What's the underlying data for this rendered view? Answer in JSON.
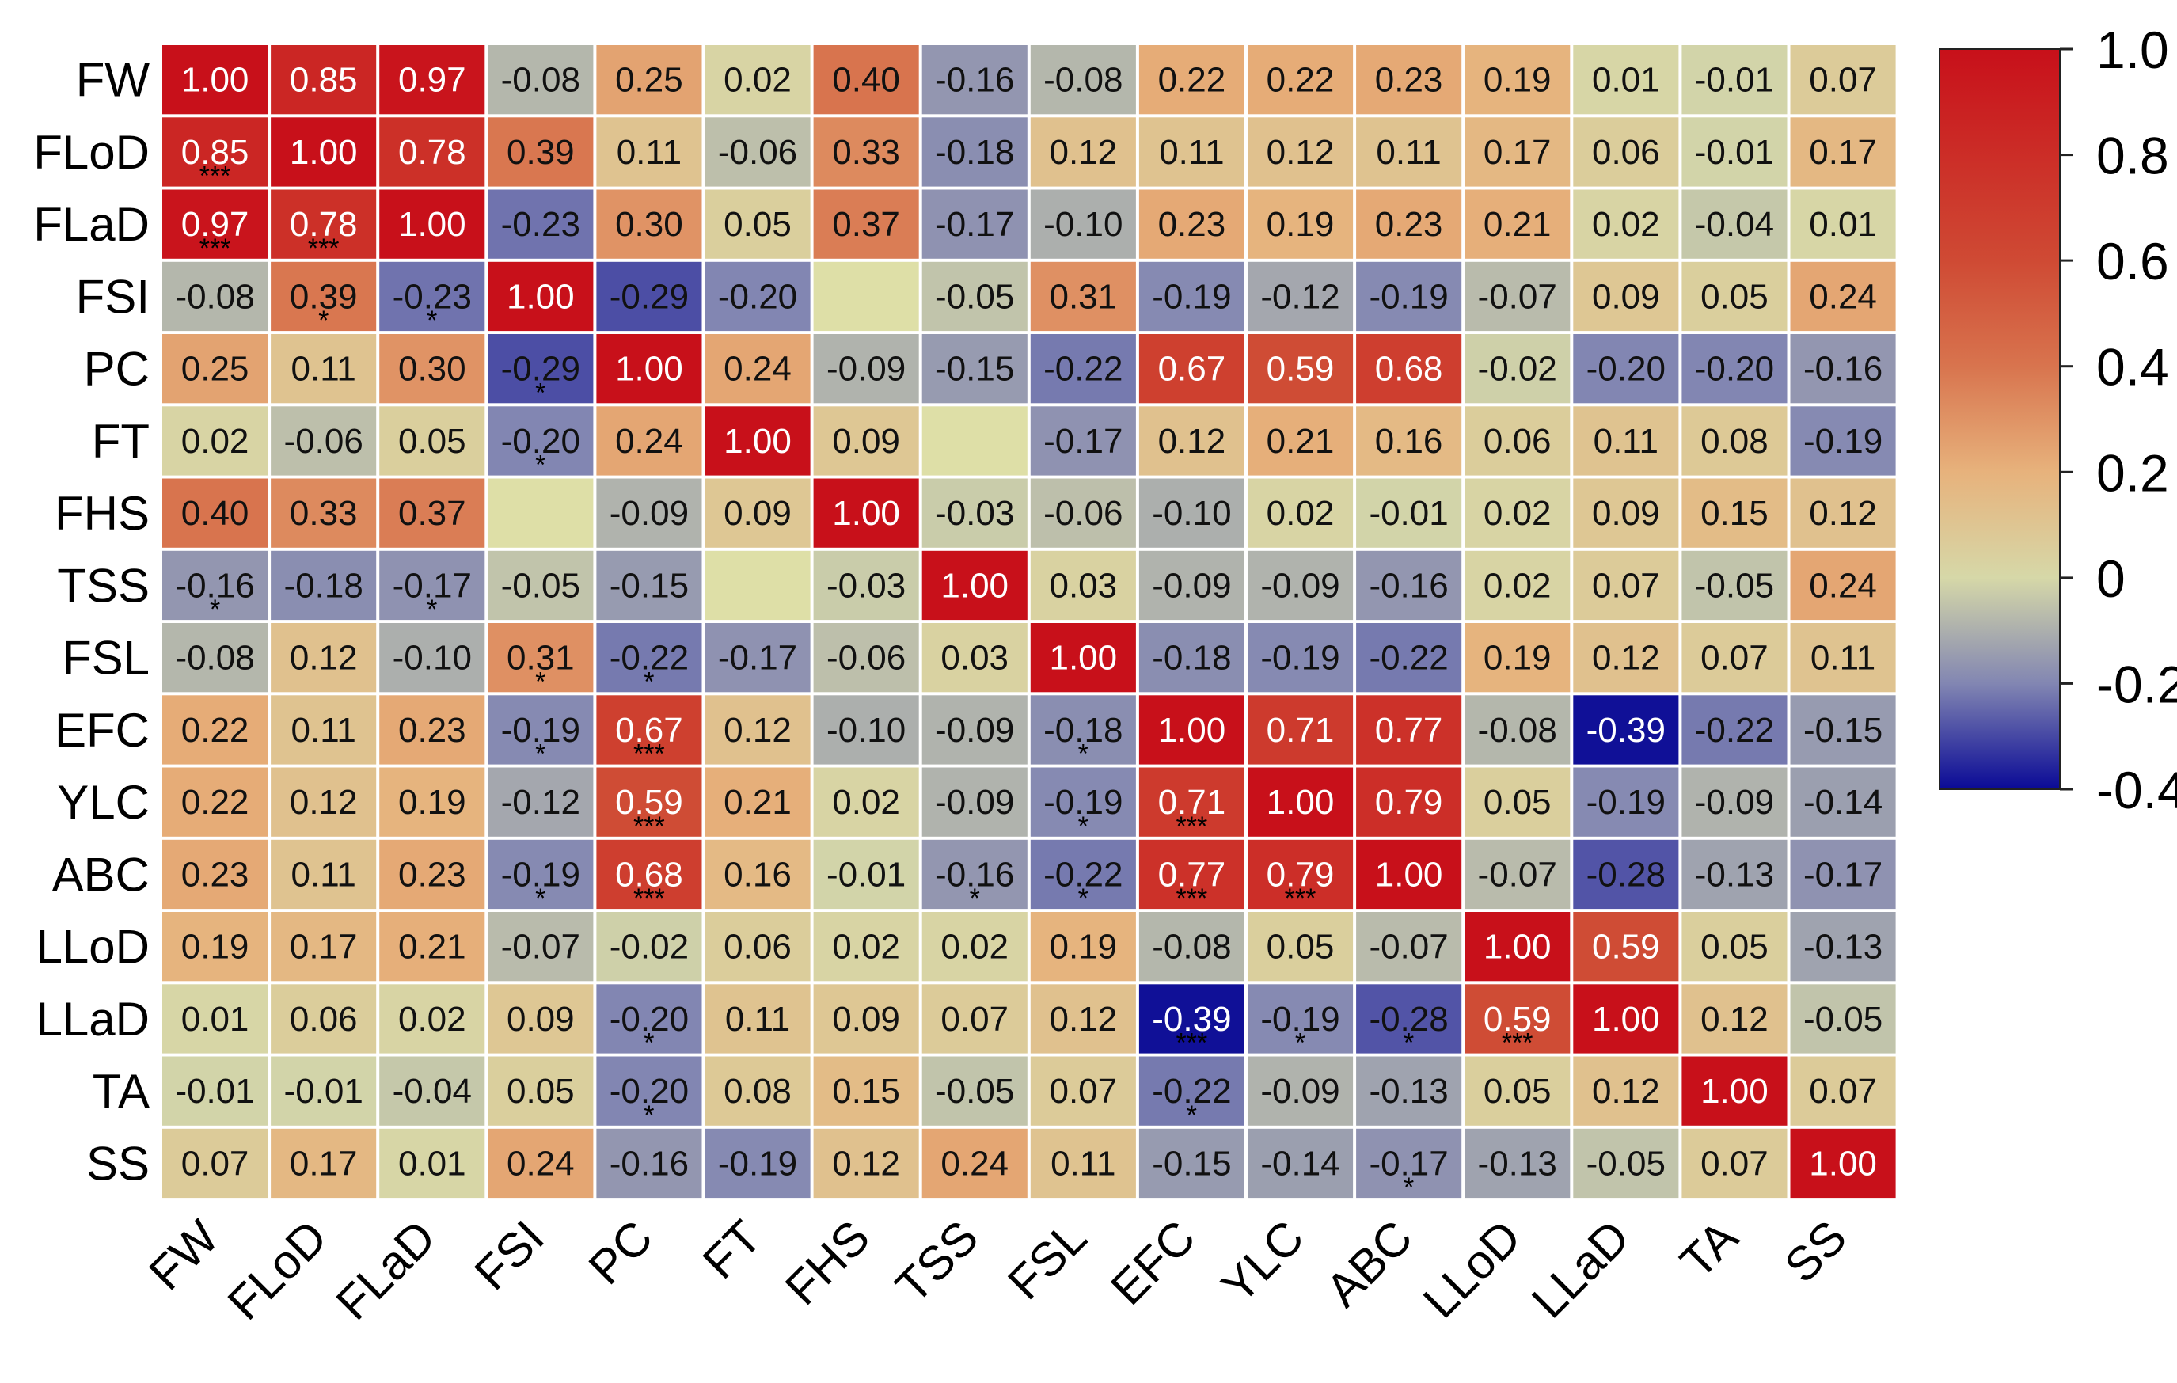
{
  "chart_data": {
    "type": "heatmap",
    "title": "",
    "variables": [
      "FW",
      "FLoD",
      "FLaD",
      "FSI",
      "PC",
      "FT",
      "FHS",
      "TSS",
      "FSL",
      "EFC",
      "YLC",
      "ABC",
      "LLoD",
      "LLaD",
      "TA",
      "SS"
    ],
    "matrix": [
      [
        1.0,
        0.85,
        0.97,
        -0.08,
        0.25,
        0.02,
        0.4,
        -0.16,
        -0.08,
        0.22,
        0.22,
        0.23,
        0.19,
        0.01,
        -0.01,
        0.07
      ],
      [
        0.85,
        1.0,
        0.78,
        0.39,
        0.11,
        -0.06,
        0.33,
        -0.18,
        0.12,
        0.11,
        0.12,
        0.11,
        0.17,
        0.06,
        -0.01,
        0.17
      ],
      [
        0.97,
        0.78,
        1.0,
        -0.23,
        0.3,
        0.05,
        0.37,
        -0.17,
        -0.1,
        0.23,
        0.19,
        0.23,
        0.21,
        0.02,
        -0.04,
        0.01
      ],
      [
        -0.08,
        0.39,
        -0.23,
        1.0,
        -0.29,
        -0.2,
        null,
        -0.05,
        0.31,
        -0.19,
        -0.12,
        -0.19,
        -0.07,
        0.09,
        0.05,
        0.24
      ],
      [
        0.25,
        0.11,
        0.3,
        -0.29,
        1.0,
        0.24,
        -0.09,
        -0.15,
        -0.22,
        0.67,
        0.59,
        0.68,
        -0.02,
        -0.2,
        -0.2,
        -0.16
      ],
      [
        0.02,
        -0.06,
        0.05,
        -0.2,
        0.24,
        1.0,
        0.09,
        null,
        -0.17,
        0.12,
        0.21,
        0.16,
        0.06,
        0.11,
        0.08,
        -0.19
      ],
      [
        0.4,
        0.33,
        0.37,
        null,
        -0.09,
        0.09,
        1.0,
        -0.03,
        -0.06,
        -0.1,
        0.02,
        -0.01,
        0.02,
        0.09,
        0.15,
        0.12
      ],
      [
        -0.16,
        -0.18,
        -0.17,
        -0.05,
        -0.15,
        null,
        -0.03,
        1.0,
        0.03,
        -0.09,
        -0.09,
        -0.16,
        0.02,
        0.07,
        -0.05,
        0.24
      ],
      [
        -0.08,
        0.12,
        -0.1,
        0.31,
        -0.22,
        -0.17,
        -0.06,
        0.03,
        1.0,
        -0.18,
        -0.19,
        -0.22,
        0.19,
        0.12,
        0.07,
        0.11
      ],
      [
        0.22,
        0.11,
        0.23,
        -0.19,
        0.67,
        0.12,
        -0.1,
        -0.09,
        -0.18,
        1.0,
        0.71,
        0.77,
        -0.08,
        -0.39,
        -0.22,
        -0.15
      ],
      [
        0.22,
        0.12,
        0.19,
        -0.12,
        0.59,
        0.21,
        0.02,
        -0.09,
        -0.19,
        0.71,
        1.0,
        0.79,
        0.05,
        -0.19,
        -0.09,
        -0.14
      ],
      [
        0.23,
        0.11,
        0.23,
        -0.19,
        0.68,
        0.16,
        -0.01,
        -0.16,
        -0.22,
        0.77,
        0.79,
        1.0,
        -0.07,
        -0.28,
        -0.13,
        -0.17
      ],
      [
        0.19,
        0.17,
        0.21,
        -0.07,
        -0.02,
        0.06,
        0.02,
        0.02,
        0.19,
        -0.08,
        0.05,
        -0.07,
        1.0,
        0.59,
        0.05,
        -0.13
      ],
      [
        0.01,
        0.06,
        0.02,
        0.09,
        -0.2,
        0.11,
        0.09,
        0.07,
        0.12,
        -0.39,
        -0.19,
        -0.28,
        0.59,
        1.0,
        0.12,
        -0.05
      ],
      [
        -0.01,
        -0.01,
        -0.04,
        0.05,
        -0.2,
        0.08,
        0.15,
        -0.05,
        0.07,
        -0.22,
        -0.09,
        -0.13,
        0.05,
        0.12,
        1.0,
        0.07
      ],
      [
        0.07,
        0.17,
        0.01,
        0.24,
        -0.16,
        -0.19,
        0.12,
        0.24,
        0.11,
        -0.15,
        -0.14,
        -0.17,
        -0.13,
        -0.05,
        0.07,
        1.0
      ]
    ],
    "significance": [
      {
        "row": 1,
        "col": 0,
        "stars": "***"
      },
      {
        "row": 2,
        "col": 0,
        "stars": "***"
      },
      {
        "row": 2,
        "col": 1,
        "stars": "***"
      },
      {
        "row": 3,
        "col": 1,
        "stars": "*"
      },
      {
        "row": 3,
        "col": 2,
        "stars": "*"
      },
      {
        "row": 4,
        "col": 3,
        "stars": "*"
      },
      {
        "row": 5,
        "col": 3,
        "stars": "*"
      },
      {
        "row": 7,
        "col": 0,
        "stars": "*"
      },
      {
        "row": 7,
        "col": 2,
        "stars": "*"
      },
      {
        "row": 8,
        "col": 3,
        "stars": "*"
      },
      {
        "row": 8,
        "col": 4,
        "stars": "*"
      },
      {
        "row": 9,
        "col": 3,
        "stars": "*"
      },
      {
        "row": 9,
        "col": 4,
        "stars": "***"
      },
      {
        "row": 9,
        "col": 8,
        "stars": "*"
      },
      {
        "row": 10,
        "col": 4,
        "stars": "***"
      },
      {
        "row": 10,
        "col": 8,
        "stars": "*"
      },
      {
        "row": 10,
        "col": 9,
        "stars": "***"
      },
      {
        "row": 11,
        "col": 3,
        "stars": "*"
      },
      {
        "row": 11,
        "col": 4,
        "stars": "***"
      },
      {
        "row": 11,
        "col": 7,
        "stars": "*"
      },
      {
        "row": 11,
        "col": 8,
        "stars": "*"
      },
      {
        "row": 11,
        "col": 9,
        "stars": "***"
      },
      {
        "row": 11,
        "col": 10,
        "stars": "***"
      },
      {
        "row": 13,
        "col": 4,
        "stars": "*"
      },
      {
        "row": 13,
        "col": 9,
        "stars": "***"
      },
      {
        "row": 13,
        "col": 10,
        "stars": "*"
      },
      {
        "row": 13,
        "col": 11,
        "stars": "*"
      },
      {
        "row": 13,
        "col": 12,
        "stars": "***"
      },
      {
        "row": 14,
        "col": 4,
        "stars": "*"
      },
      {
        "row": 14,
        "col": 9,
        "stars": "*"
      },
      {
        "row": 15,
        "col": 11,
        "stars": "*"
      }
    ],
    "colorbar": {
      "min": -0.4,
      "max": 1.0,
      "ticks": [
        "1.0",
        "0.8",
        "0.6",
        "0.4",
        "0.2",
        "0",
        "-0.2",
        "-0.4"
      ],
      "tick_values": [
        1.0,
        0.8,
        0.6,
        0.4,
        0.2,
        0,
        -0.2,
        -0.4
      ],
      "colors": [
        {
          "v": -0.4,
          "c": "#0a0a96"
        },
        {
          "v": -0.2,
          "c": "#8286b2"
        },
        {
          "v": 0.0,
          "c": "#d6d8a8"
        },
        {
          "v": 0.2,
          "c": "#e7b27c"
        },
        {
          "v": 0.4,
          "c": "#d8744e"
        },
        {
          "v": 0.6,
          "c": "#cf4a34"
        },
        {
          "v": 1.0,
          "c": "#c8101a"
        }
      ],
      "empty_cell_color": "#dedfa7",
      "grid_line_color": "#ffffff"
    }
  }
}
